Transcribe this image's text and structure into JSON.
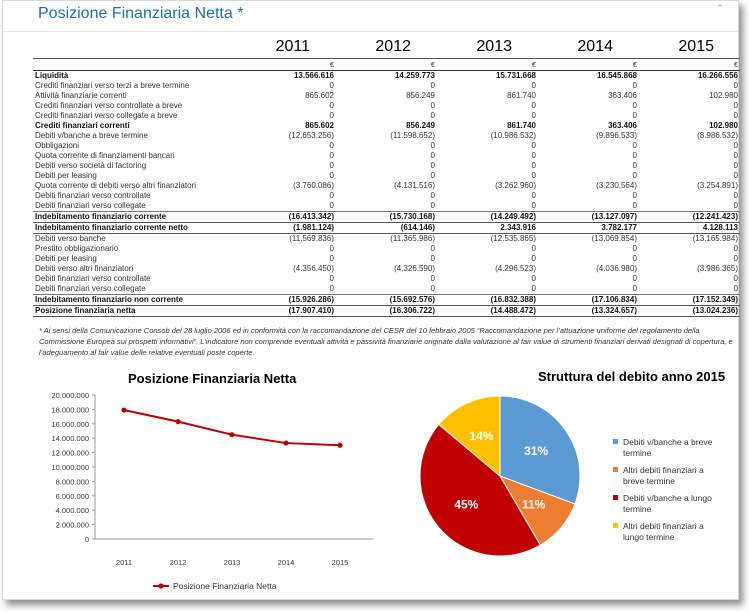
{
  "header": {
    "title": "Posizione Finanziaria Netta *",
    "collapse_icon": "chevron-up-icon"
  },
  "table": {
    "years": [
      "2011",
      "2012",
      "2013",
      "2014",
      "2015"
    ],
    "currency": "€",
    "rows": [
      {
        "label": "Liquidità",
        "values": [
          "13.566.616",
          "14.259.773",
          "15.731.668",
          "16.545.868",
          "16.266.556"
        ],
        "bold": true
      },
      {
        "label": "Crediti finanziari verso terzi a breve termine",
        "values": [
          "0",
          "0",
          "0",
          "0",
          "0"
        ]
      },
      {
        "label": "Attività finanziarie correnti",
        "values": [
          "865.602",
          "856.249",
          "861.740",
          "363.406",
          "102.980"
        ]
      },
      {
        "label": "Crediti finanziari verso controllate a breve",
        "values": [
          "0",
          "0",
          "0",
          "0",
          "0"
        ]
      },
      {
        "label": "Crediti finanziari verso collegate a breve",
        "values": [
          "0",
          "0",
          "0",
          "0",
          "0"
        ]
      },
      {
        "label": "Crediti finanziari correnti",
        "values": [
          "865.602",
          "856.249",
          "861.740",
          "363.406",
          "102.980"
        ],
        "bold": true
      },
      {
        "label": "Debiti v/banche a breve termine",
        "values": [
          "(12.653.256)",
          "(11.598.652)",
          "(10.986.532)",
          "(9.896.533)",
          "(8.986.532)"
        ]
      },
      {
        "label": "Obbligazioni",
        "values": [
          "0",
          "0",
          "0",
          "0",
          "0"
        ]
      },
      {
        "label": "Quota corrente di finanziamenti bancari",
        "values": [
          "0",
          "0",
          "0",
          "0",
          "0"
        ]
      },
      {
        "label": "Debiti verso società di factoring",
        "values": [
          "0",
          "0",
          "0",
          "0",
          "0"
        ]
      },
      {
        "label": "Debiti per leasing",
        "values": [
          "0",
          "0",
          "0",
          "0",
          "0"
        ]
      },
      {
        "label": "Quota corrente di debiti verso altri finanziatori",
        "values": [
          "(3.760.086)",
          "(4.131.516)",
          "(3.262.960)",
          "(3.230.564)",
          "(3.254.891)"
        ]
      },
      {
        "label": "Debiti finanziari verso controllate",
        "values": [
          "0",
          "0",
          "0",
          "0",
          "0"
        ]
      },
      {
        "label": "Debiti finanziari verso collegate",
        "values": [
          "0",
          "0",
          "0",
          "0",
          "0"
        ]
      },
      {
        "label": "Indebitamento finanziario corrente",
        "values": [
          "(16.413.342)",
          "(15.730.168)",
          "(14.249.492)",
          "(13.127.097)",
          "(12.241.423)"
        ],
        "bold": true,
        "sep": true
      },
      {
        "label": "Indebitamento finanziario corrente netto",
        "values": [
          "(1.981.124)",
          "(614.146)",
          "2.343.916",
          "3.782.177",
          "4.128.113"
        ],
        "bold": true,
        "double": true
      },
      {
        "label": "Debiti verso banche",
        "values": [
          "(11.569.836)",
          "(11.365.986)",
          "(12.535.865)",
          "(13.069.854)",
          "(13.165.984)"
        ]
      },
      {
        "label": "Prestito obbligazionario",
        "values": [
          "0",
          "0",
          "0",
          "0",
          "0"
        ]
      },
      {
        "label": "Debiti per leasing",
        "values": [
          "0",
          "0",
          "0",
          "0",
          "0"
        ]
      },
      {
        "label": "Debiti verso altri finanziatori",
        "values": [
          "(4.356.450)",
          "(4.326.590)",
          "(4.296.523)",
          "(4.036.980)",
          "(3.986.365)"
        ]
      },
      {
        "label": "Debiti finanziari verso controllate",
        "values": [
          "0",
          "0",
          "0",
          "0",
          "0"
        ]
      },
      {
        "label": "Debiti finanziari verso collegate",
        "values": [
          "0",
          "0",
          "0",
          "0",
          "0"
        ]
      },
      {
        "label": "Indebitamento finanziario non corrente",
        "values": [
          "(15.926.286)",
          "(15.692.576)",
          "(16.832.388)",
          "(17.106.834)",
          "(17.152.349)"
        ],
        "bold": true,
        "sep": true
      },
      {
        "label": "Posizione finanziaria netta",
        "values": [
          "(17.907.410)",
          "(16.306.722)",
          "(14.488.472)",
          "(13.324.657)",
          "(13.024.236)"
        ],
        "bold": true,
        "double": true
      }
    ]
  },
  "note": "* Ai sensi della Comunicazione Consob del 28 luglio 2006 ed in conformità con la raccomandazione del CESR del 10 febbraio 2005 “Raccomandazione per l’attuazione uniforme del regolamento della Commissione Europea sui prospetti informativi”. L’indicatore non comprende eventuali attività e passività finanziarie originate dalla valutazione al fair value di strumenti finanziari derivati designati di copertura, e l’adeguamento al fair value delle relative eventuali poste coperte.",
  "chart_data": [
    {
      "type": "line",
      "title": "Posizione Finanziaria Netta",
      "x": [
        "2011",
        "2012",
        "2013",
        "2014",
        "2015"
      ],
      "series": [
        {
          "name": "Posizione Finanziaria Netta",
          "values": [
            17907410,
            16306722,
            14488472,
            13324657,
            13024236
          ],
          "color": "#c00000"
        }
      ],
      "ylim": [
        0,
        20000000
      ],
      "y_ticks": [
        "0",
        "2.000.000",
        "4.000.000",
        "6.000.000",
        "8.000.000",
        "10.000.000",
        "12.000.000",
        "14.000.000",
        "16.000.000",
        "18.000.000",
        "20.000.000"
      ],
      "grid": false,
      "legend": "bottom"
    },
    {
      "type": "pie",
      "title": "Struttura del debito anno 2015",
      "slices": [
        {
          "label": "Debiti v/banche a breve termine",
          "value": 31,
          "display": "31%",
          "color": "#5b9bd5"
        },
        {
          "label": "Altri debiti finanziari a breve termine",
          "value": 11,
          "display": "11%",
          "color": "#ed7d31"
        },
        {
          "label": "Debiti v/banche a lungo termine",
          "value": 45,
          "display": "45%",
          "color": "#c00000"
        },
        {
          "label": "Altri debiti finanziari a lungo termine",
          "value": 14,
          "display": "14%",
          "color": "#ffc000"
        }
      ],
      "legend": "right"
    }
  ]
}
